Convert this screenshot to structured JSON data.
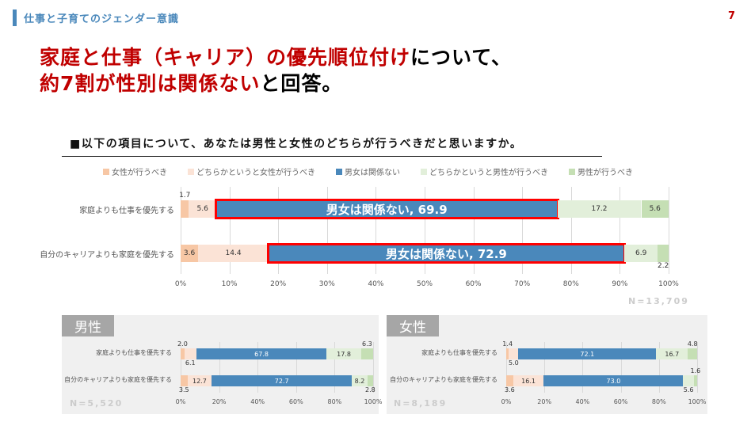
{
  "header": {
    "section": "仕事と子育てのジェンダー意識",
    "page": "7"
  },
  "headline": {
    "line1_red": "家庭と仕事（キャリア）の優先順位付け",
    "line1_black": "について、",
    "line2_red": "約7割が性別は関係ない",
    "line2_black": "と回答。"
  },
  "question": "■以下の項目について、あなたは男性と女性のどちらが行うべきだと思いますか。",
  "colors": [
    "#f7c7a5",
    "#fbe3d6",
    "#4a88bb",
    "#e2efda",
    "#c5dfb4"
  ],
  "chart_data": [
    {
      "type": "bar",
      "stacked": true,
      "orientation": "horizontal",
      "title": "",
      "legend": [
        "女性が行うべき",
        "どちらかというと女性が行うべき",
        "男女は関係ない",
        "どちらかというと男性が行うべき",
        "男性が行うべき"
      ],
      "legend_position": "top",
      "categories": [
        "家庭よりも仕事を優先する",
        "自分のキャリアよりも家庭を優先する"
      ],
      "series": [
        {
          "name": "女性が行うべき",
          "values": [
            1.7,
            3.6
          ]
        },
        {
          "name": "どちらかというと女性が行うべき",
          "values": [
            5.6,
            14.4
          ]
        },
        {
          "name": "男女は関係ない",
          "values": [
            69.9,
            72.9
          ]
        },
        {
          "name": "どちらかというと男性が行うべき",
          "values": [
            17.2,
            6.9
          ]
        },
        {
          "name": "男性が行うべき",
          "values": [
            5.6,
            2.2
          ]
        }
      ],
      "highlight_labels": [
        "男女は関係ない, 69.9",
        "男女は関係ない, 72.9"
      ],
      "xticks": [
        "0%",
        "10%",
        "20%",
        "30%",
        "40%",
        "50%",
        "60%",
        "70%",
        "80%",
        "90%",
        "100%"
      ],
      "xlim": [
        0,
        100
      ],
      "grid": true,
      "note": "N=13,709"
    },
    {
      "type": "bar",
      "stacked": true,
      "orientation": "horizontal",
      "title": "男性",
      "categories": [
        "家庭よりも仕事を優先する",
        "自分のキャリアよりも家庭を優先する"
      ],
      "series": [
        {
          "values": [
            2.0,
            3.5
          ]
        },
        {
          "values": [
            6.1,
            12.7
          ]
        },
        {
          "values": [
            67.8,
            72.7
          ]
        },
        {
          "values": [
            17.8,
            8.2
          ]
        },
        {
          "values": [
            6.3,
            2.8
          ]
        }
      ],
      "labels": [
        [
          "2.0",
          "6.1",
          "67.8",
          "17.8",
          "6.3"
        ],
        [
          "3.5",
          "12.7",
          "72.7",
          "8.2",
          "2.8"
        ]
      ],
      "xticks": [
        "0%",
        "20%",
        "40%",
        "60%",
        "80%",
        "100%"
      ],
      "xlim": [
        0,
        100
      ],
      "grid": true,
      "note": "N=5,520"
    },
    {
      "type": "bar",
      "stacked": true,
      "orientation": "horizontal",
      "title": "女性",
      "categories": [
        "家庭よりも仕事を優先する",
        "自分のキャリアよりも家庭を優先する"
      ],
      "series": [
        {
          "values": [
            1.4,
            3.6
          ]
        },
        {
          "values": [
            5.0,
            16.1
          ]
        },
        {
          "values": [
            72.1,
            73.0
          ]
        },
        {
          "values": [
            16.7,
            5.6
          ]
        },
        {
          "values": [
            4.8,
            1.6
          ]
        }
      ],
      "labels": [
        [
          "1.4",
          "5.0",
          "72.1",
          "16.7",
          "4.8"
        ],
        [
          "3.6",
          "16.1",
          "73.0",
          "5.6",
          "1.6"
        ]
      ],
      "xticks": [
        "0%",
        "20%",
        "40%",
        "60%",
        "80%",
        "100%"
      ],
      "xlim": [
        0,
        100
      ],
      "grid": true,
      "note": "N=8,189"
    }
  ]
}
